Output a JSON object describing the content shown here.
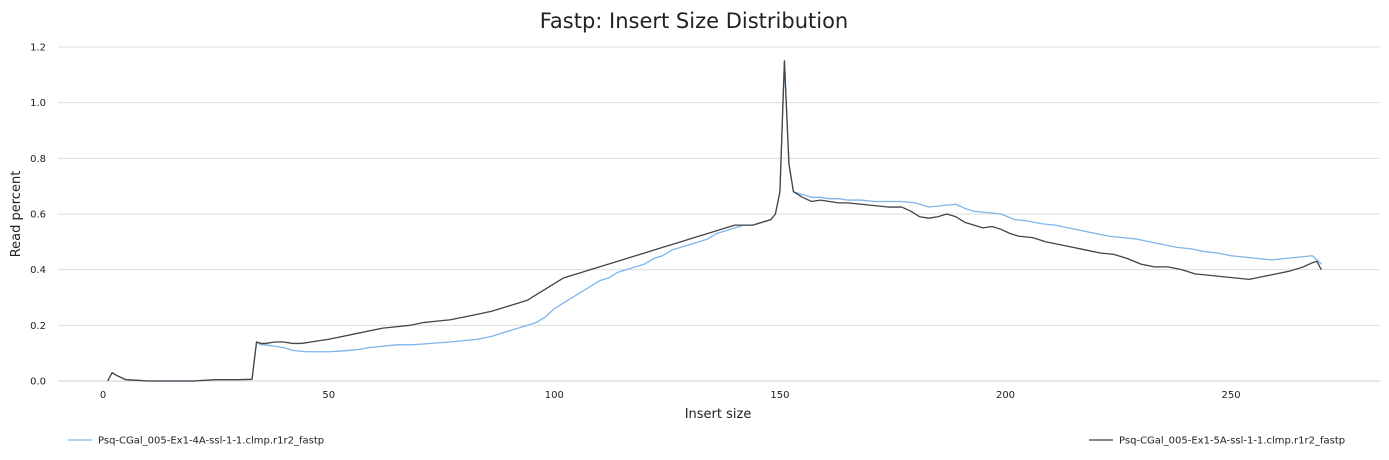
{
  "chart_data": {
    "type": "line",
    "title": "Fastp: Insert Size Distribution",
    "xlabel": "Insert size",
    "ylabel": "Read percent",
    "xlim": [
      -10,
      283
    ],
    "ylim": [
      0,
      1.2
    ],
    "x_ticks": [
      0,
      50,
      100,
      150,
      200,
      250
    ],
    "y_ticks": [
      0.0,
      0.2,
      0.4,
      0.6,
      0.8,
      1.0,
      1.2
    ],
    "y_tick_labels": [
      "0.0",
      "0.2",
      "0.4",
      "0.6",
      "0.8",
      "1.0",
      "1.2"
    ],
    "grid": true,
    "legend_position": "bottom",
    "series": [
      {
        "name": "Psq-CGal_005-Ex1-4A-ssl-1-1.clmp.r1r2_fastp",
        "color": "#7cb5ec",
        "points": [
          [
            1,
            0.0
          ],
          [
            2,
            0.03
          ],
          [
            3,
            0.02
          ],
          [
            5,
            0.005
          ],
          [
            8,
            0.002
          ],
          [
            10,
            0.0
          ],
          [
            20,
            0.0
          ],
          [
            25,
            0.005
          ],
          [
            30,
            0.005
          ],
          [
            33,
            0.006
          ],
          [
            34,
            0.14
          ],
          [
            35,
            0.13
          ],
          [
            36,
            0.13
          ],
          [
            38,
            0.125
          ],
          [
            40,
            0.12
          ],
          [
            42,
            0.11
          ],
          [
            45,
            0.105
          ],
          [
            48,
            0.105
          ],
          [
            50,
            0.105
          ],
          [
            53,
            0.108
          ],
          [
            56,
            0.112
          ],
          [
            59,
            0.12
          ],
          [
            62,
            0.125
          ],
          [
            65,
            0.13
          ],
          [
            68,
            0.13
          ],
          [
            71,
            0.133
          ],
          [
            74,
            0.137
          ],
          [
            77,
            0.14
          ],
          [
            80,
            0.145
          ],
          [
            83,
            0.15
          ],
          [
            86,
            0.16
          ],
          [
            88,
            0.17
          ],
          [
            90,
            0.18
          ],
          [
            92,
            0.19
          ],
          [
            94,
            0.2
          ],
          [
            96,
            0.21
          ],
          [
            98,
            0.23
          ],
          [
            100,
            0.26
          ],
          [
            102,
            0.28
          ],
          [
            104,
            0.3
          ],
          [
            106,
            0.32
          ],
          [
            108,
            0.34
          ],
          [
            110,
            0.36
          ],
          [
            112,
            0.37
          ],
          [
            114,
            0.39
          ],
          [
            116,
            0.4
          ],
          [
            118,
            0.41
          ],
          [
            120,
            0.42
          ],
          [
            122,
            0.44
          ],
          [
            124,
            0.45
          ],
          [
            126,
            0.47
          ],
          [
            128,
            0.48
          ],
          [
            130,
            0.49
          ],
          [
            132,
            0.5
          ],
          [
            134,
            0.51
          ],
          [
            136,
            0.53
          ],
          [
            138,
            0.54
          ],
          [
            140,
            0.55
          ],
          [
            142,
            0.56
          ],
          [
            144,
            0.56
          ],
          [
            146,
            0.57
          ],
          [
            148,
            0.58
          ],
          [
            149,
            0.6
          ],
          [
            150,
            0.68
          ],
          [
            151,
            1.15
          ],
          [
            152,
            0.78
          ],
          [
            153,
            0.68
          ],
          [
            155,
            0.67
          ],
          [
            157,
            0.66
          ],
          [
            159,
            0.66
          ],
          [
            161,
            0.655
          ],
          [
            163,
            0.655
          ],
          [
            165,
            0.65
          ],
          [
            168,
            0.65
          ],
          [
            171,
            0.645
          ],
          [
            174,
            0.645
          ],
          [
            177,
            0.645
          ],
          [
            180,
            0.64
          ],
          [
            183,
            0.625
          ],
          [
            186,
            0.63
          ],
          [
            189,
            0.635
          ],
          [
            191,
            0.62
          ],
          [
            193,
            0.61
          ],
          [
            196,
            0.605
          ],
          [
            199,
            0.6
          ],
          [
            202,
            0.58
          ],
          [
            205,
            0.575
          ],
          [
            208,
            0.565
          ],
          [
            211,
            0.56
          ],
          [
            214,
            0.55
          ],
          [
            217,
            0.54
          ],
          [
            220,
            0.53
          ],
          [
            223,
            0.52
          ],
          [
            226,
            0.515
          ],
          [
            229,
            0.51
          ],
          [
            232,
            0.5
          ],
          [
            235,
            0.49
          ],
          [
            238,
            0.48
          ],
          [
            241,
            0.475
          ],
          [
            244,
            0.465
          ],
          [
            247,
            0.46
          ],
          [
            250,
            0.45
          ],
          [
            253,
            0.445
          ],
          [
            256,
            0.44
          ],
          [
            259,
            0.435
          ],
          [
            262,
            0.44
          ],
          [
            265,
            0.445
          ],
          [
            268,
            0.45
          ],
          [
            270,
            0.42
          ]
        ]
      },
      {
        "name": "Psq-CGal_005-Ex1-5A-ssl-1-1.clmp.r1r2_fastp",
        "color": "#434348",
        "points": [
          [
            1,
            0.0
          ],
          [
            2,
            0.03
          ],
          [
            3,
            0.02
          ],
          [
            5,
            0.005
          ],
          [
            8,
            0.002
          ],
          [
            10,
            0.0
          ],
          [
            20,
            0.0
          ],
          [
            25,
            0.005
          ],
          [
            30,
            0.005
          ],
          [
            33,
            0.006
          ],
          [
            34,
            0.14
          ],
          [
            35,
            0.135
          ],
          [
            36,
            0.135
          ],
          [
            38,
            0.14
          ],
          [
            40,
            0.14
          ],
          [
            42,
            0.135
          ],
          [
            44,
            0.135
          ],
          [
            46,
            0.14
          ],
          [
            48,
            0.145
          ],
          [
            50,
            0.15
          ],
          [
            53,
            0.16
          ],
          [
            56,
            0.17
          ],
          [
            59,
            0.18
          ],
          [
            62,
            0.19
          ],
          [
            65,
            0.195
          ],
          [
            68,
            0.2
          ],
          [
            71,
            0.21
          ],
          [
            74,
            0.215
          ],
          [
            77,
            0.22
          ],
          [
            80,
            0.23
          ],
          [
            83,
            0.24
          ],
          [
            86,
            0.25
          ],
          [
            88,
            0.26
          ],
          [
            90,
            0.27
          ],
          [
            92,
            0.28
          ],
          [
            94,
            0.29
          ],
          [
            96,
            0.31
          ],
          [
            98,
            0.33
          ],
          [
            100,
            0.35
          ],
          [
            102,
            0.37
          ],
          [
            104,
            0.38
          ],
          [
            106,
            0.39
          ],
          [
            108,
            0.4
          ],
          [
            110,
            0.41
          ],
          [
            112,
            0.42
          ],
          [
            114,
            0.43
          ],
          [
            116,
            0.44
          ],
          [
            118,
            0.45
          ],
          [
            120,
            0.46
          ],
          [
            122,
            0.47
          ],
          [
            124,
            0.48
          ],
          [
            126,
            0.49
          ],
          [
            128,
            0.5
          ],
          [
            130,
            0.51
          ],
          [
            132,
            0.52
          ],
          [
            134,
            0.53
          ],
          [
            136,
            0.54
          ],
          [
            138,
            0.55
          ],
          [
            140,
            0.56
          ],
          [
            142,
            0.56
          ],
          [
            144,
            0.56
          ],
          [
            146,
            0.57
          ],
          [
            148,
            0.58
          ],
          [
            149,
            0.6
          ],
          [
            150,
            0.68
          ],
          [
            151,
            1.15
          ],
          [
            152,
            0.78
          ],
          [
            153,
            0.68
          ],
          [
            155,
            0.66
          ],
          [
            157,
            0.645
          ],
          [
            159,
            0.65
          ],
          [
            161,
            0.645
          ],
          [
            163,
            0.64
          ],
          [
            165,
            0.64
          ],
          [
            168,
            0.635
          ],
          [
            171,
            0.63
          ],
          [
            174,
            0.625
          ],
          [
            177,
            0.625
          ],
          [
            179,
            0.61
          ],
          [
            181,
            0.59
          ],
          [
            183,
            0.585
          ],
          [
            185,
            0.59
          ],
          [
            187,
            0.6
          ],
          [
            189,
            0.59
          ],
          [
            191,
            0.57
          ],
          [
            193,
            0.56
          ],
          [
            195,
            0.55
          ],
          [
            197,
            0.555
          ],
          [
            199,
            0.545
          ],
          [
            201,
            0.53
          ],
          [
            203,
            0.52
          ],
          [
            206,
            0.515
          ],
          [
            209,
            0.5
          ],
          [
            212,
            0.49
          ],
          [
            215,
            0.48
          ],
          [
            218,
            0.47
          ],
          [
            221,
            0.46
          ],
          [
            224,
            0.455
          ],
          [
            227,
            0.44
          ],
          [
            230,
            0.42
          ],
          [
            233,
            0.41
          ],
          [
            236,
            0.41
          ],
          [
            239,
            0.4
          ],
          [
            242,
            0.385
          ],
          [
            245,
            0.38
          ],
          [
            248,
            0.375
          ],
          [
            251,
            0.37
          ],
          [
            254,
            0.365
          ],
          [
            257,
            0.375
          ],
          [
            260,
            0.385
          ],
          [
            263,
            0.395
          ],
          [
            266,
            0.41
          ],
          [
            268,
            0.425
          ],
          [
            269,
            0.43
          ],
          [
            270,
            0.4
          ]
        ]
      }
    ]
  }
}
